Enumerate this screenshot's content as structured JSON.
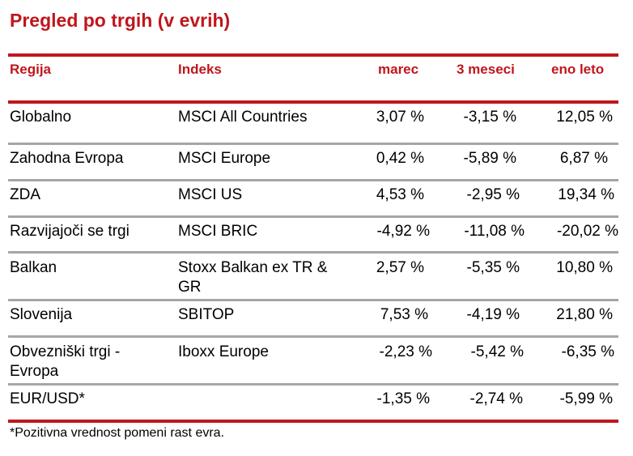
{
  "title": "Pregled po trgih (v evrih)",
  "columns": {
    "region": "Regija",
    "index": "Indeks",
    "march": "marec",
    "three_months": "3 meseci",
    "one_year": "eno leto"
  },
  "rows": [
    {
      "region": "Globalno",
      "index": "MSCI All Countries",
      "march": "3,07 %",
      "three_months": "-3,15 %",
      "one_year": "12,05 %"
    },
    {
      "region": "Zahodna Evropa",
      "index": "MSCI Europe",
      "march": "0,42 %",
      "three_months": "-5,89 %",
      "one_year": "6,87 %"
    },
    {
      "region": "ZDA",
      "index": "MSCI US",
      "march": "4,53 %",
      "three_months": "-2,95 %",
      "one_year": "19,34 %"
    },
    {
      "region": "Razvijajoči se trgi",
      "index": "MSCI BRIC",
      "march": "-4,92 %",
      "three_months": "-11,08 %",
      "one_year": "-20,02 %"
    },
    {
      "region": "Balkan",
      "index_line1": "Stoxx Balkan ex TR &",
      "index_line2": "GR",
      "march": "2,57 %",
      "three_months": "-5,35 %",
      "one_year": "10,80 %"
    },
    {
      "region": "Slovenija",
      "index": "SBITOP",
      "march": "7,53 %",
      "three_months": "-4,19 %",
      "one_year": "21,80 %"
    },
    {
      "region_line1": "Obvezniški trgi -",
      "region_line2": "Evropa",
      "index": "Iboxx Europe",
      "march": "-2,23 %",
      "three_months": "-5,42 %",
      "one_year": "-6,35 %"
    },
    {
      "region": "EUR/USD*",
      "index": "",
      "march": "-1,35 %",
      "three_months": "-2,74 %",
      "one_year": "-5,99 %"
    }
  ],
  "footnote": "*Pozitivna vrednost pomeni rast evra.",
  "colors": {
    "accent": "#c0161c",
    "divider": "#a6a6a6"
  }
}
